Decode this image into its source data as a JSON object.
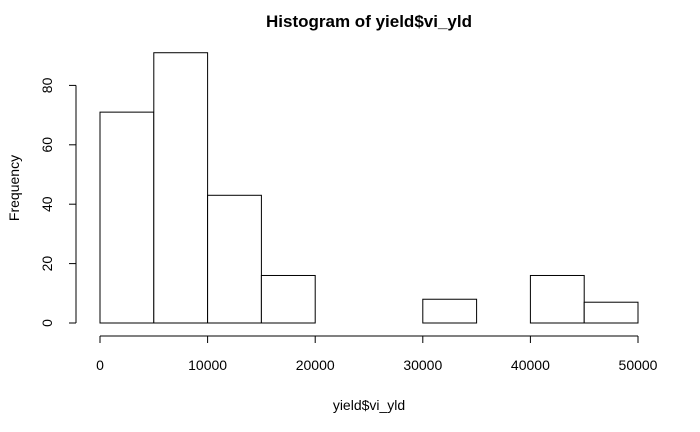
{
  "chart_data": {
    "type": "bar",
    "subtype": "histogram",
    "title": "Histogram of yield$vi_yld",
    "xlabel": "yield$vi_yld",
    "ylabel": "Frequency",
    "bin_edges": [
      0,
      5000,
      10000,
      15000,
      20000,
      25000,
      30000,
      35000,
      40000,
      45000,
      50000
    ],
    "values": [
      71,
      91,
      43,
      16,
      0,
      0,
      8,
      0,
      16,
      7
    ],
    "xlim": [
      0,
      50000
    ],
    "ylim": [
      0,
      91
    ],
    "x_ticks": [
      0,
      10000,
      20000,
      30000,
      40000,
      50000
    ],
    "x_tick_labels": [
      "0",
      "10000",
      "20000",
      "30000",
      "40000",
      "50000"
    ],
    "y_ticks": [
      0,
      20,
      40,
      60,
      80
    ],
    "y_tick_labels": [
      "0",
      "20",
      "40",
      "60",
      "80"
    ],
    "grid": false,
    "bar_fill": "#ffffff",
    "bar_stroke": "#000000"
  }
}
